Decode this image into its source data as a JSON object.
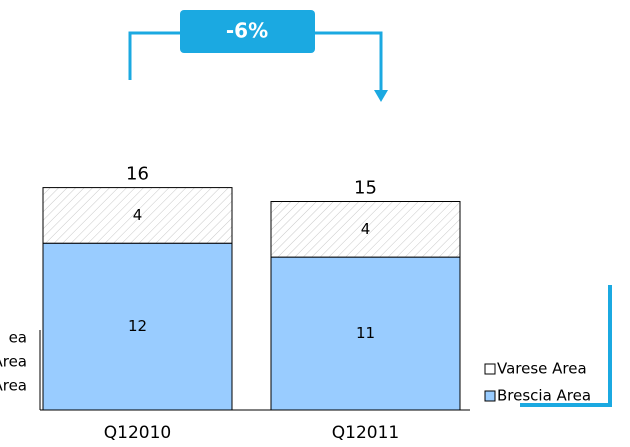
{
  "chart_data": {
    "type": "stacked_bar",
    "annotation": "-6%",
    "categories": [
      "Q12010",
      "Q12011"
    ],
    "series": [
      {
        "name": "Brescia Area",
        "color": "#99ccff",
        "values": [
          12,
          11
        ]
      },
      {
        "name": "Varese Area",
        "color": "#ffffff",
        "values": [
          4,
          4
        ]
      }
    ],
    "totals": [
      16,
      15
    ],
    "clipped_labels": [
      "ea",
      "Area",
      "Area"
    ],
    "ylim": [
      0,
      20
    ]
  }
}
